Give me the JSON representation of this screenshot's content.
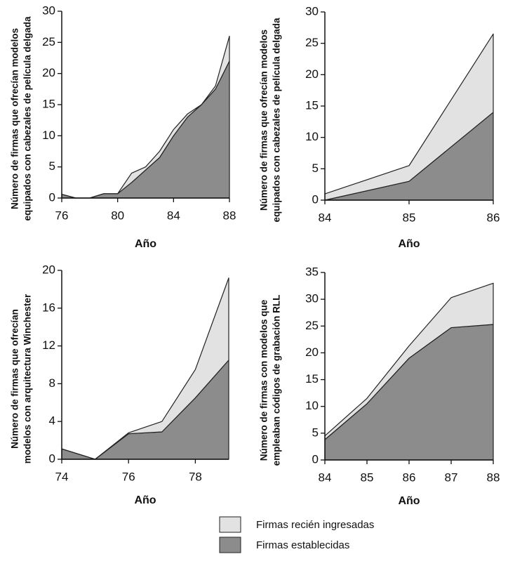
{
  "chart_data": [
    {
      "type": "stacked_area",
      "x": [
        76,
        77,
        78,
        79,
        80,
        81,
        82,
        83,
        84,
        85,
        86,
        87,
        88
      ],
      "xlim": [
        76,
        88
      ],
      "xticks": [
        76,
        80,
        84,
        88
      ],
      "ylim": [
        0,
        30
      ],
      "yticks": [
        0,
        5,
        10,
        15,
        20,
        25,
        30
      ],
      "ylabel": [
        "Número de firmas que ofrecían modelos",
        "equipados con cabezales de película delgada"
      ],
      "xlabel": "Año",
      "series": [
        {
          "name": "Firmas establecidas",
          "color": "#8c8c8c",
          "values": [
            0.6,
            0,
            0,
            0.7,
            0.7,
            2.5,
            4.5,
            6.5,
            10,
            13,
            15,
            17.5,
            22
          ]
        },
        {
          "name": "Firmas recién ingresadas",
          "color": "#e2e2e2",
          "values": [
            0,
            0,
            0,
            0,
            0,
            1.5,
            0.5,
            1,
            1,
            0.5,
            0,
            0.5,
            4
          ]
        }
      ]
    },
    {
      "type": "stacked_area",
      "x": [
        84,
        85,
        86
      ],
      "xlim": [
        84,
        86
      ],
      "xticks": [
        84,
        85,
        86
      ],
      "ylim": [
        0,
        30
      ],
      "yticks": [
        0,
        5,
        10,
        15,
        20,
        25,
        30
      ],
      "ylabel": [
        "Número de firmas que ofrecían modelos",
        "equipados con cabezales de película delgada"
      ],
      "xlabel": "Año",
      "series": [
        {
          "name": "Firmas establecidas",
          "color": "#8c8c8c",
          "values": [
            0,
            3,
            14
          ]
        },
        {
          "name": "Firmas recién ingresadas",
          "color": "#e2e2e2",
          "values": [
            1,
            2.5,
            12.5
          ]
        }
      ]
    },
    {
      "type": "stacked_area",
      "x": [
        74,
        75,
        76,
        77,
        78,
        79
      ],
      "xlim": [
        74,
        79
      ],
      "xticks": [
        74,
        76,
        78
      ],
      "ylim": [
        0,
        20
      ],
      "yticks": [
        0,
        4,
        8,
        12,
        16,
        20
      ],
      "ylabel": [
        "Número de firmas que ofrecían",
        "modelos con arquitectura Winchester"
      ],
      "xlabel": "Año",
      "series": [
        {
          "name": "Firmas establecidas",
          "color": "#8c8c8c",
          "values": [
            1.1,
            0,
            2.7,
            2.9,
            6.5,
            10.5
          ]
        },
        {
          "name": "Firmas recién ingresadas",
          "color": "#e2e2e2",
          "values": [
            0,
            0,
            0.1,
            1.1,
            3,
            8.7
          ]
        }
      ]
    },
    {
      "type": "stacked_area",
      "x": [
        84,
        85,
        86,
        87,
        88
      ],
      "xlim": [
        84,
        88
      ],
      "xticks": [
        84,
        85,
        86,
        87,
        88
      ],
      "ylim": [
        0,
        35
      ],
      "yticks": [
        0,
        5,
        10,
        15,
        20,
        25,
        30,
        35
      ],
      "ylabel": [
        "Número de firmas con modelos que",
        "empleaban códigos de grabación RLL"
      ],
      "xlabel": "Año",
      "series": [
        {
          "name": "Firmas establecidas",
          "color": "#8c8c8c",
          "values": [
            3.8,
            10.5,
            19,
            24.7,
            25.3
          ]
        },
        {
          "name": "Firmas recién ingresadas",
          "color": "#e2e2e2",
          "values": [
            0.7,
            1,
            2.3,
            5.6,
            7.7
          ]
        }
      ]
    }
  ]
}
